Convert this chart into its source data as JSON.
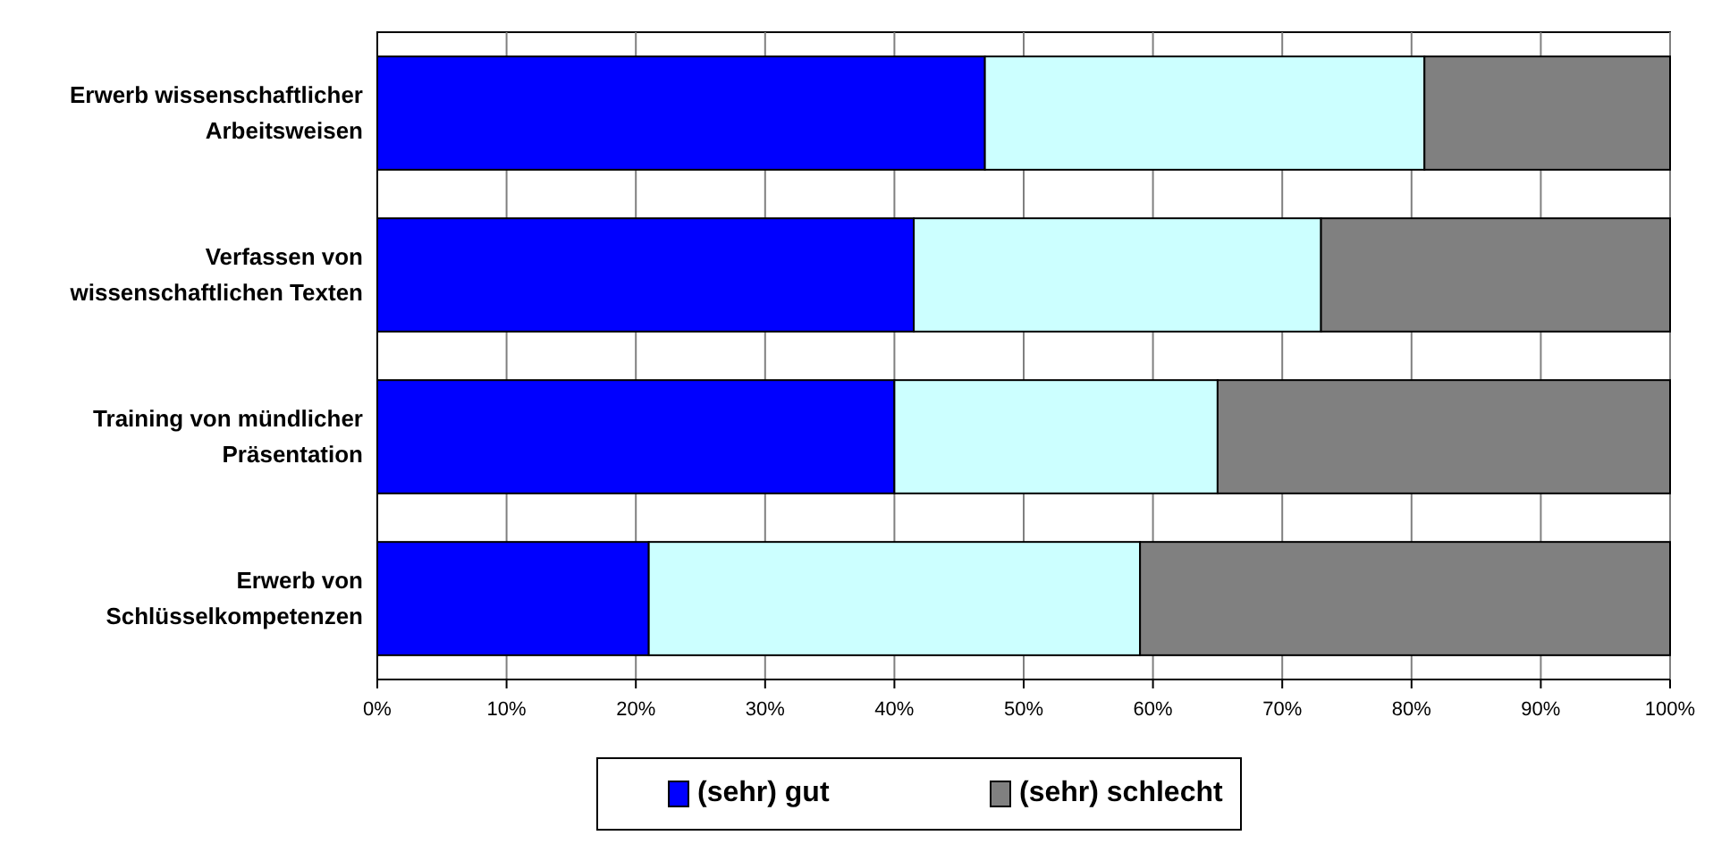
{
  "chart_data": {
    "type": "bar",
    "orientation": "horizontal",
    "stacked": true,
    "categories": [
      "Erwerb wissenschaftlicher\nArbeitsweisen",
      "Verfassen von\nwissenschaftlichen Texten",
      "Training von mündlicher\nPräsentation",
      "Erwerb von\nSchlüsselkompetenzen"
    ],
    "series": [
      {
        "name": "(sehr) gut",
        "color": "#0000ff",
        "values": [
          47,
          41.5,
          40,
          21
        ]
      },
      {
        "color": "#ccffff",
        "values": [
          34,
          31.5,
          25,
          38
        ]
      },
      {
        "name": "(sehr) schlecht",
        "color": "#808080",
        "values": [
          19,
          27,
          35,
          41
        ]
      }
    ],
    "xlim": [
      0,
      100
    ],
    "xticks": [
      {
        "value": 0,
        "label": "0%"
      },
      {
        "value": 10,
        "label": "10%"
      },
      {
        "value": 20,
        "label": "20%"
      },
      {
        "value": 30,
        "label": "30%"
      },
      {
        "value": 40,
        "label": "40%"
      },
      {
        "value": 50,
        "label": "50%"
      },
      {
        "value": 60,
        "label": "60%"
      },
      {
        "value": 70,
        "label": "70%"
      },
      {
        "value": 80,
        "label": "80%"
      },
      {
        "value": 90,
        "label": "90%"
      },
      {
        "value": 100,
        "label": "100%"
      }
    ],
    "grid": "x",
    "legend": "bottom"
  }
}
